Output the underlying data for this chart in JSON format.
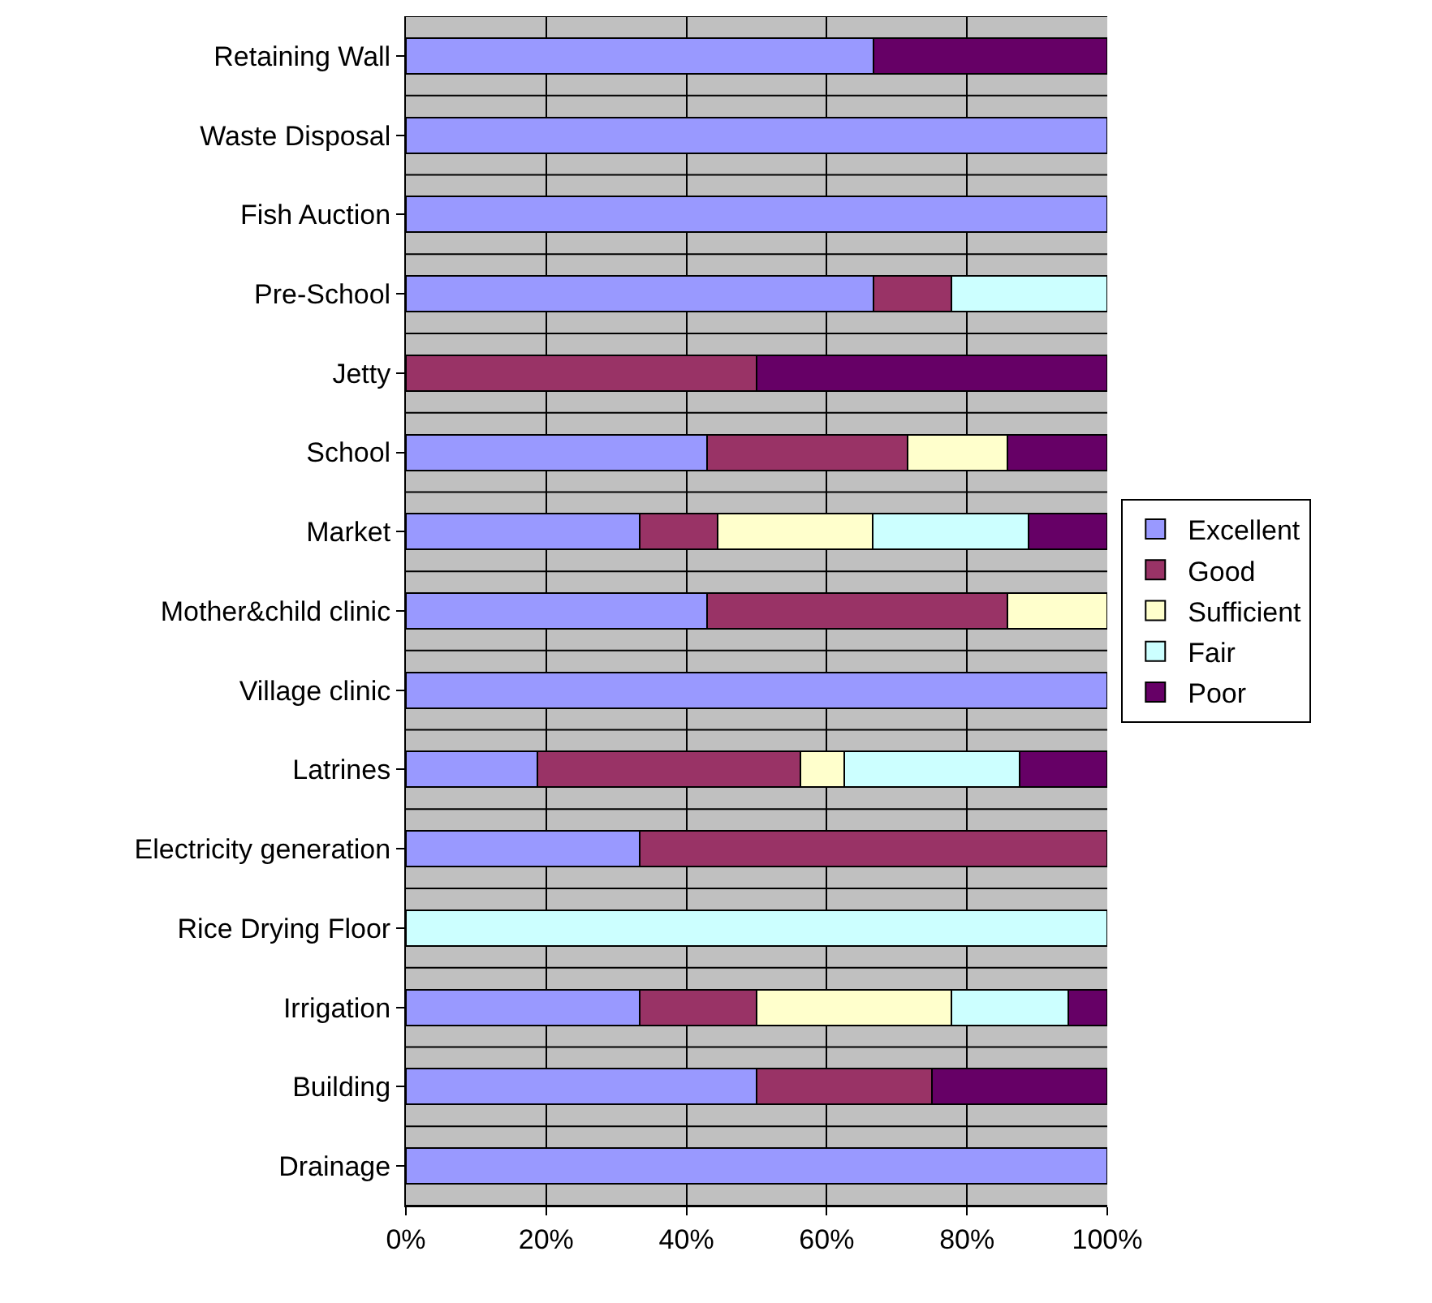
{
  "chart_data": {
    "type": "bar",
    "orientation": "horizontal",
    "stacked": true,
    "categories": [
      "Retaining Wall",
      "Waste Disposal",
      "Fish Auction",
      "Pre-School",
      "Jetty",
      "School",
      "Market",
      "Mother&child clinic",
      "Village clinic",
      "Latrines",
      "Electricity generation",
      "Rice Drying Floor",
      "Irrigation",
      "Building",
      "Drainage"
    ],
    "series": [
      {
        "name": "Excellent",
        "color": "#9999ff",
        "values": [
          66.7,
          100,
          100,
          66.7,
          null,
          42.9,
          33.3,
          42.9,
          100,
          18.8,
          33.3,
          null,
          33.3,
          50,
          100
        ]
      },
      {
        "name": "Good",
        "color": "#993366",
        "values": [
          null,
          null,
          null,
          11.1,
          50,
          28.6,
          11.1,
          42.9,
          null,
          37.5,
          66.7,
          null,
          16.7,
          25,
          null
        ]
      },
      {
        "name": "Sufficient",
        "color": "#ffffcc",
        "values": [
          null,
          null,
          null,
          null,
          null,
          14.3,
          22.2,
          14.2,
          null,
          6.2,
          null,
          null,
          27.8,
          null,
          null
        ]
      },
      {
        "name": "Fair",
        "color": "#ccffff",
        "values": [
          null,
          null,
          null,
          22.2,
          null,
          null,
          22.2,
          null,
          null,
          25,
          null,
          100,
          16.6,
          null,
          null
        ]
      },
      {
        "name": "Poor",
        "color": "#660066",
        "values": [
          33.3,
          null,
          null,
          null,
          50,
          14.2,
          11.2,
          null,
          null,
          12.5,
          null,
          null,
          5.6,
          25,
          null
        ]
      }
    ],
    "xlim": [
      0,
      100
    ],
    "xticks": [
      {
        "value": 0,
        "label": "0%"
      },
      {
        "value": 20,
        "label": "20%"
      },
      {
        "value": 40,
        "label": "40%"
      },
      {
        "value": 60,
        "label": "60%"
      },
      {
        "value": 80,
        "label": "80%"
      },
      {
        "value": 100,
        "label": "100%"
      }
    ],
    "grid": "x",
    "legend": "right"
  }
}
